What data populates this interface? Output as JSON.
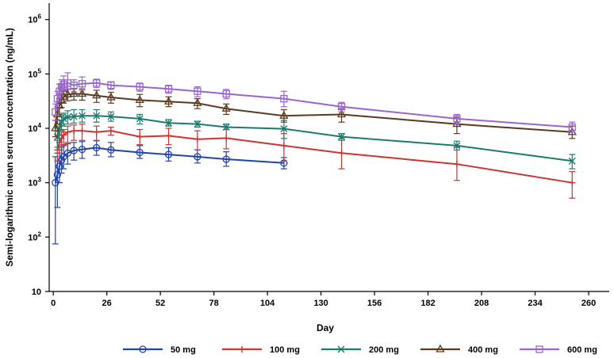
{
  "chart_data": {
    "type": "line",
    "title": "",
    "xlabel": "Day",
    "ylabel": "Semi-logarithmic mean serum concentration (ng/mL)",
    "xlim": [
      -2,
      270
    ],
    "ylim": [
      10,
      2000000
    ],
    "y_scale": "log",
    "x_ticks": [
      0,
      26,
      52,
      78,
      104,
      130,
      156,
      182,
      208,
      234,
      260
    ],
    "x_tick_labels": [
      "0",
      "26",
      "52",
      "78",
      "104",
      "130",
      "156",
      "182",
      "208",
      "234",
      "260"
    ],
    "y_ticks": [
      10,
      100,
      1000,
      10000,
      100000,
      1000000
    ],
    "y_tick_labels": [
      {
        "base": "10",
        "exp": ""
      },
      {
        "base": "10",
        "exp": "2"
      },
      {
        "base": "10",
        "exp": "3"
      },
      {
        "base": "10",
        "exp": "4"
      },
      {
        "base": "10",
        "exp": "5"
      },
      {
        "base": "10",
        "exp": "6"
      }
    ],
    "grid": false,
    "legend_position": "bottom",
    "series": [
      {
        "name": "50 mg",
        "color": "#2244aa",
        "marker": "circle",
        "x": [
          1,
          2,
          3,
          4,
          5,
          7,
          10,
          14,
          21,
          28,
          42,
          56,
          70,
          84,
          112
        ],
        "y": [
          1000,
          1400,
          2000,
          2600,
          3000,
          3500,
          3900,
          4100,
          4400,
          4000,
          3600,
          3300,
          3000,
          2700,
          2300
        ],
        "err_low": [
          75,
          350,
          1000,
          1500,
          1800,
          2200,
          2600,
          2800,
          3200,
          3000,
          2800,
          2500,
          2300,
          2000,
          1800
        ],
        "err_high": [
          3000,
          3500,
          4000,
          4500,
          4800,
          5200,
          5500,
          5700,
          5900,
          5500,
          4800,
          4400,
          4000,
          3700,
          2900
        ]
      },
      {
        "name": "100 mg",
        "color": "#cc3333",
        "marker": "plus",
        "x": [
          2,
          3,
          4,
          5,
          7,
          10,
          14,
          21,
          28,
          42,
          56,
          70,
          84,
          112,
          140,
          196,
          252
        ],
        "y": [
          4000,
          5500,
          6500,
          7500,
          8500,
          9000,
          9000,
          8500,
          9000,
          7000,
          7300,
          6300,
          6600,
          4800,
          3500,
          2200,
          1000
        ],
        "err_low": [
          2500,
          3500,
          4500,
          5000,
          5500,
          6000,
          6000,
          6000,
          7500,
          5000,
          5000,
          4000,
          4200,
          2500,
          1800,
          1100,
          520
        ],
        "err_high": [
          6000,
          7500,
          8500,
          9500,
          11000,
          11500,
          12000,
          11000,
          10500,
          9500,
          10000,
          9000,
          9500,
          8000,
          6500,
          4500,
          1600
        ]
      },
      {
        "name": "200 mg",
        "color": "#1e7a6e",
        "marker": "x",
        "x": [
          2,
          3,
          4,
          5,
          7,
          10,
          14,
          21,
          28,
          42,
          56,
          70,
          84,
          112,
          140,
          196,
          252
        ],
        "y": [
          7000,
          10000,
          13000,
          15000,
          16000,
          16500,
          17000,
          17000,
          16500,
          15000,
          12500,
          12000,
          10500,
          9800,
          7000,
          4800,
          2500
        ],
        "err_low": [
          4500,
          6500,
          9000,
          11000,
          12000,
          12500,
          13000,
          13000,
          13500,
          12000,
          11000,
          10500,
          9500,
          6500,
          6000,
          4000,
          1800
        ],
        "err_high": [
          10000,
          14000,
          17000,
          19000,
          21000,
          22000,
          22000,
          22000,
          20000,
          18000,
          14500,
          13500,
          12000,
          14000,
          8000,
          5800,
          3300
        ]
      },
      {
        "name": "400 mg",
        "color": "#5c3a1e",
        "marker": "triangle",
        "x": [
          1,
          2,
          3,
          4,
          5,
          7,
          10,
          14,
          21,
          28,
          42,
          56,
          70,
          84,
          112,
          140,
          196,
          252
        ],
        "y": [
          10000,
          18000,
          26000,
          33000,
          38000,
          42000,
          43000,
          43000,
          40000,
          37000,
          33000,
          31000,
          29000,
          23000,
          17000,
          18000,
          12000,
          8500
        ],
        "err_low": [
          7000,
          12000,
          18000,
          24000,
          29000,
          32000,
          33000,
          33000,
          30000,
          29000,
          25000,
          25000,
          23000,
          18000,
          13000,
          13000,
          8000,
          6500
        ],
        "err_high": [
          14000,
          25000,
          35000,
          43000,
          48000,
          52000,
          53000,
          53000,
          50000,
          46000,
          42000,
          38000,
          35000,
          28000,
          22000,
          23000,
          16000,
          11000
        ]
      },
      {
        "name": "600 mg",
        "color": "#9966cc",
        "marker": "square",
        "x": [
          1,
          2,
          3,
          4,
          5,
          7,
          10,
          14,
          21,
          28,
          42,
          56,
          70,
          84,
          112,
          140,
          196,
          252
        ],
        "y": [
          20000,
          35000,
          48000,
          58000,
          64000,
          68000,
          62000,
          66000,
          68000,
          62000,
          58000,
          53000,
          48000,
          43000,
          35000,
          25000,
          15000,
          10500
        ],
        "err_low": [
          14000,
          25000,
          36000,
          45000,
          50000,
          53000,
          47000,
          50000,
          56000,
          52000,
          48000,
          44000,
          38000,
          35000,
          25000,
          20000,
          12000,
          8500
        ],
        "err_high": [
          28000,
          48000,
          65000,
          78000,
          92000,
          105000,
          78000,
          88000,
          80000,
          72000,
          68000,
          62000,
          58000,
          52000,
          48000,
          30000,
          18000,
          13000
        ]
      }
    ]
  }
}
